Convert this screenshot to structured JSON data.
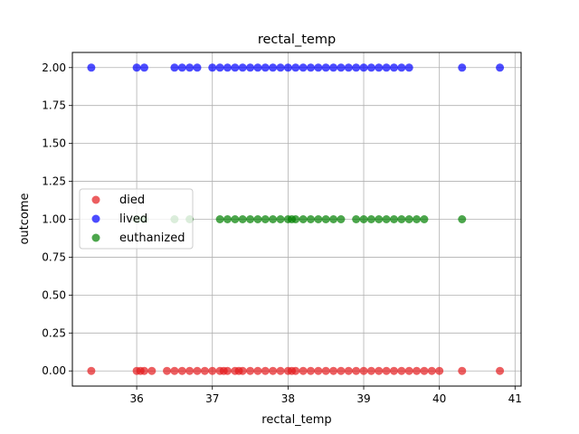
{
  "chart_data": {
    "type": "scatter",
    "title": "rectal_temp",
    "xlabel": "rectal_temp",
    "ylabel": "outcome",
    "xlim": [
      35.15,
      41.08
    ],
    "ylim": [
      -0.1,
      2.1
    ],
    "xticks": [
      36,
      37,
      38,
      39,
      40,
      41
    ],
    "xtick_labels": [
      "36",
      "37",
      "38",
      "39",
      "40",
      "41"
    ],
    "yticks": [
      0.0,
      0.25,
      0.5,
      0.75,
      1.0,
      1.25,
      1.5,
      1.75,
      2.0
    ],
    "ytick_labels": [
      "0.00",
      "0.25",
      "0.50",
      "0.75",
      "1.00",
      "1.25",
      "1.50",
      "1.75",
      "2.00"
    ],
    "grid": true,
    "legend_position": "center-left",
    "series": [
      {
        "name": "died",
        "color": "#e41a1c",
        "y": 0,
        "x": [
          35.4,
          36.0,
          36.05,
          36.1,
          36.2,
          36.4,
          36.5,
          36.6,
          36.7,
          36.8,
          36.9,
          37.0,
          37.1,
          37.15,
          37.2,
          37.3,
          37.35,
          37.4,
          37.5,
          37.6,
          37.7,
          37.8,
          37.9,
          38.0,
          38.05,
          38.1,
          38.2,
          38.3,
          38.4,
          38.5,
          38.6,
          38.7,
          38.8,
          38.9,
          39.0,
          39.1,
          39.2,
          39.3,
          39.4,
          39.5,
          39.6,
          39.7,
          39.8,
          39.9,
          40.0,
          40.3,
          40.8
        ]
      },
      {
        "name": "lived",
        "color": "#0000ff",
        "y": 2,
        "x": [
          35.4,
          36.0,
          36.1,
          36.5,
          36.6,
          36.7,
          36.8,
          37.0,
          37.1,
          37.2,
          37.3,
          37.4,
          37.5,
          37.6,
          37.7,
          37.8,
          37.9,
          38.0,
          38.1,
          38.2,
          38.3,
          38.4,
          38.5,
          38.6,
          38.7,
          38.8,
          38.9,
          39.0,
          39.1,
          39.2,
          39.3,
          39.4,
          39.5,
          39.6,
          40.3,
          40.8
        ]
      },
      {
        "name": "euthanized",
        "color": "#008000",
        "y": 1,
        "x": [
          36.0,
          36.1,
          36.5,
          36.7,
          37.1,
          37.2,
          37.3,
          37.4,
          37.5,
          37.6,
          37.7,
          37.8,
          37.9,
          38.0,
          38.05,
          38.1,
          38.2,
          38.3,
          38.4,
          38.5,
          38.6,
          38.7,
          38.9,
          39.0,
          39.1,
          39.2,
          39.3,
          39.4,
          39.5,
          39.6,
          39.7,
          39.8,
          40.3
        ]
      }
    ]
  }
}
